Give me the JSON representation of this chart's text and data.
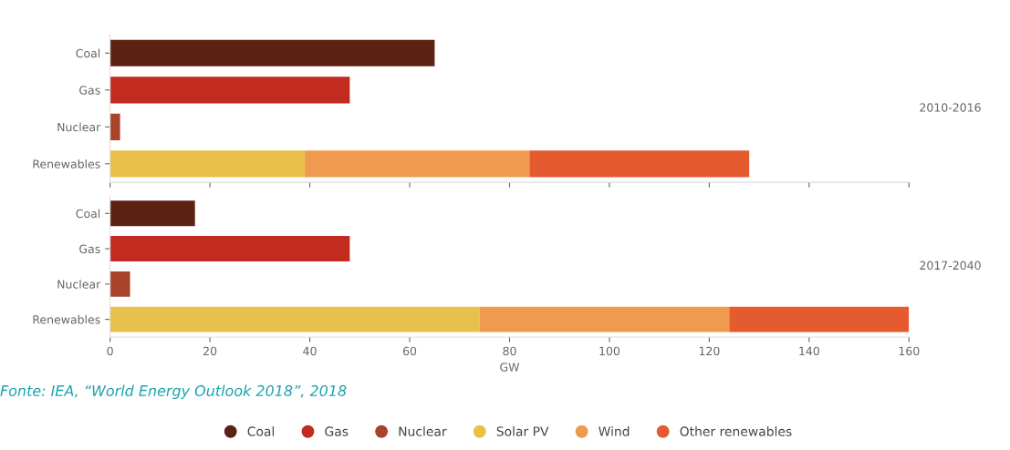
{
  "chart_data": [
    {
      "type": "bar",
      "orientation": "horizontal",
      "stacked": true,
      "categories": [
        "Coal",
        "Gas",
        "Nuclear",
        "Renewables"
      ],
      "y2label": "2010-2016",
      "xlim": [
        0,
        160
      ],
      "xticks": [
        0,
        20,
        40,
        60,
        80,
        100,
        120,
        140,
        160
      ],
      "tick_labels": "y",
      "grid": false,
      "legend": "bottom",
      "series": [
        {
          "name": "Coal",
          "color": "#5c2314",
          "values": [
            65,
            null,
            null,
            null
          ]
        },
        {
          "name": "Gas",
          "color": "#c12b20",
          "values": [
            null,
            48,
            null,
            null
          ]
        },
        {
          "name": "Nuclear",
          "color": "#a8432a",
          "values": [
            null,
            null,
            2,
            null
          ]
        },
        {
          "name": "Solar PV",
          "color": "#e8c04a",
          "values": [
            null,
            null,
            null,
            39
          ]
        },
        {
          "name": "Wind",
          "color": "#ef9a4e",
          "values": [
            null,
            null,
            null,
            45
          ]
        },
        {
          "name": "Other renewables",
          "color": "#e65a2f",
          "values": [
            null,
            null,
            null,
            44
          ]
        }
      ]
    },
    {
      "type": "bar",
      "orientation": "horizontal",
      "stacked": true,
      "categories": [
        "Coal",
        "Gas",
        "Nuclear",
        "Renewables"
      ],
      "y2label": "2017-2040",
      "xlabel": "GW",
      "xlim": [
        0,
        160
      ],
      "xticks": [
        0,
        20,
        40,
        60,
        80,
        100,
        120,
        140,
        160
      ],
      "grid": false,
      "annotations": [
        "Fonte: IEA, “World Energy Outlook 2018”, 2018"
      ],
      "series": [
        {
          "color": "#5c2314",
          "values": [
            17,
            null,
            null,
            null
          ]
        },
        {
          "color": "#c12b20",
          "values": [
            null,
            48,
            null,
            null
          ]
        },
        {
          "color": "#a8432a",
          "values": [
            null,
            null,
            4,
            null
          ]
        },
        {
          "color": "#e8c04a",
          "values": [
            null,
            null,
            null,
            74
          ]
        },
        {
          "color": "#ef9a4e",
          "values": [
            null,
            null,
            null,
            50
          ]
        },
        {
          "color": "#e65a2f",
          "values": [
            null,
            null,
            null,
            36
          ]
        }
      ]
    }
  ]
}
